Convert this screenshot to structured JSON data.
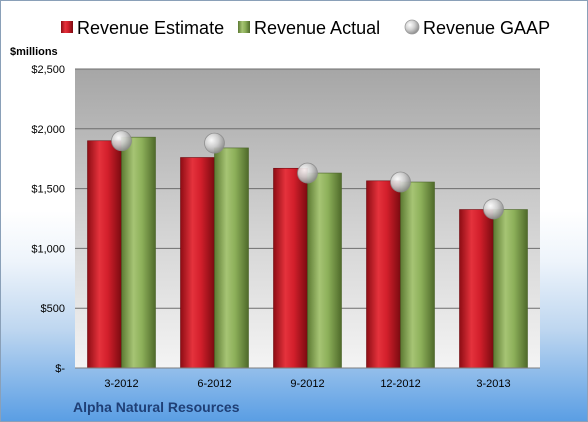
{
  "chart_data": {
    "type": "bar",
    "unit_label": "$millions",
    "company": "Alpha Natural Resources",
    "categories": [
      "3-2012",
      "6-2012",
      "9-2012",
      "12-2012",
      "3-2013"
    ],
    "series": [
      {
        "name": "Revenue Estimate",
        "kind": "bar",
        "color": "#d21f2b",
        "values": [
          1900,
          1760,
          1670,
          1565,
          1325
        ]
      },
      {
        "name": "Revenue Actual",
        "kind": "bar",
        "color": "#8db05a",
        "values": [
          1930,
          1840,
          1630,
          1555,
          1325
        ]
      },
      {
        "name": "Revenue GAAP",
        "kind": "marker",
        "color": "#c8c8c8",
        "values": [
          1900,
          1880,
          1630,
          1555,
          1330
        ]
      }
    ],
    "yticks": [
      0,
      500,
      1000,
      1500,
      2000,
      2500
    ],
    "ytick_labels": [
      "$-",
      "$500",
      "$1,000",
      "$1,500",
      "$2,000",
      "$2,500"
    ],
    "ylim": [
      0,
      2500
    ],
    "grid": true,
    "legend_position": "top"
  }
}
